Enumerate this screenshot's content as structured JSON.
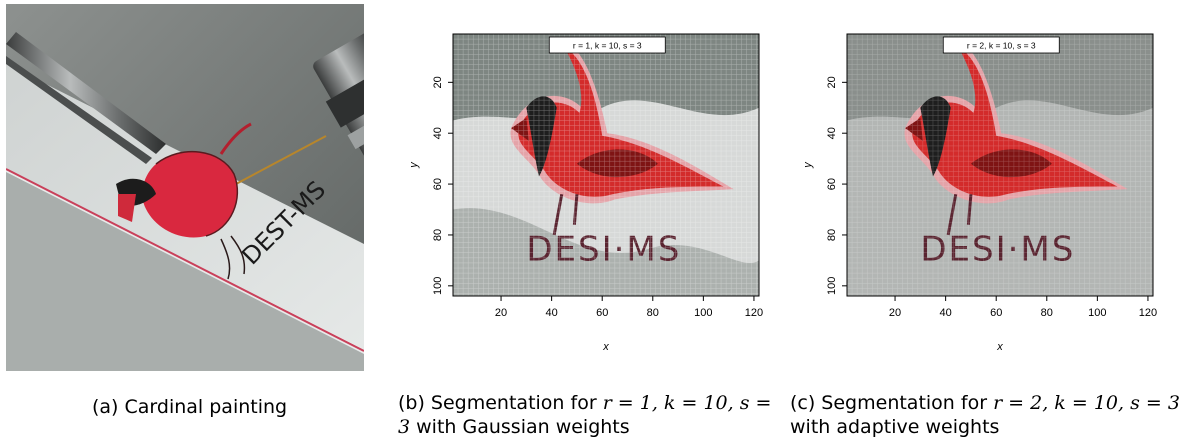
{
  "figure": {
    "subfigures": [
      {
        "caption": "(a) Cardinal painting",
        "painted_text": "DEST-MS"
      },
      {
        "caption_prefix": "(b) Segmentation for",
        "caption_math": "r = 1, k = 10, s = 3",
        "caption_suffix": "with Gaussian weights",
        "legend_label": "r = 1, k = 10, s = 3",
        "painted_text": "DESI·MS"
      },
      {
        "caption_prefix": "(c) Segmentation for",
        "caption_math": "r = 2, k = 10, s = 3",
        "caption_suffix": "with adaptive weights",
        "legend_label": "r = 2, k = 10, s = 3",
        "painted_text": "DESI·MS"
      }
    ]
  },
  "chart_data": [
    {
      "type": "heatmap",
      "xlabel": "x",
      "ylabel": "y",
      "x_ticks": [
        "20",
        "40",
        "60",
        "80",
        "100",
        "120"
      ],
      "y_ticks": [
        "20",
        "40",
        "60",
        "80",
        "100"
      ],
      "xlim": [
        1,
        122
      ],
      "ylim": [
        104,
        1
      ],
      "legend": "r = 1, k = 10, s = 3",
      "grid": true
    },
    {
      "type": "heatmap",
      "xlabel": "x",
      "ylabel": "y",
      "x_ticks": [
        "20",
        "40",
        "60",
        "80",
        "100",
        "120"
      ],
      "y_ticks": [
        "20",
        "40",
        "60",
        "80",
        "100"
      ],
      "xlim": [
        1,
        122
      ],
      "ylim": [
        104,
        1
      ],
      "legend": "r = 2, k = 10, s = 3",
      "grid": true
    }
  ],
  "colors": {
    "cluster_red": "#d32b2b",
    "cluster_darkred": "#7f1414",
    "cluster_black": "#1e1e1e",
    "cluster_pink": "#e4a3a8",
    "text_maroon": "#5a2430",
    "bg_dark": "#7e8682",
    "bg_light": "#d7d9d8",
    "bg_mid": "#b3b6b4"
  }
}
